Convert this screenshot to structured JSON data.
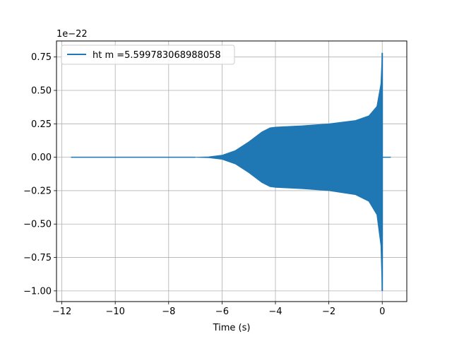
{
  "chart_data": {
    "type": "line",
    "title": "",
    "xlabel": "Time (s)",
    "ylabel": "",
    "y_scale_label": "1e−22",
    "xlim": [
      -12.2,
      0.92
    ],
    "ylim": [
      -1.08,
      0.87
    ],
    "x_ticks": [
      -12,
      -10,
      -8,
      -6,
      -4,
      -2,
      0
    ],
    "x_tick_labels": [
      "−12",
      "−10",
      "−8",
      "−6",
      "−4",
      "−2",
      "0"
    ],
    "y_ticks": [
      -1.0,
      -0.75,
      -0.5,
      -0.25,
      0.0,
      0.25,
      0.5,
      0.75
    ],
    "y_tick_labels": [
      "−1.00",
      "−0.75",
      "−0.50",
      "−0.25",
      "0.00",
      "0.25",
      "0.50",
      "0.75"
    ],
    "grid": true,
    "legend_position": "top-left",
    "series": [
      {
        "name": "ht m =5.599783068988058",
        "color": "#1f77b4",
        "x_start": -11.65,
        "x_end": 0.32,
        "envelope_upper": {
          "x": [
            -11.65,
            -7.0,
            -6.5,
            -6.0,
            -5.5,
            -5.0,
            -4.5,
            -4.2,
            -4.0,
            -3.0,
            -2.0,
            -1.0,
            -0.5,
            -0.2,
            -0.05,
            0.0
          ],
          "y": [
            0.0,
            0.0,
            0.003,
            0.015,
            0.05,
            0.115,
            0.19,
            0.22,
            0.225,
            0.235,
            0.25,
            0.275,
            0.31,
            0.38,
            0.55,
            0.78
          ]
        },
        "envelope_lower": {
          "x": [
            -11.65,
            -7.0,
            -6.5,
            -6.0,
            -5.5,
            -5.0,
            -4.5,
            -4.2,
            -4.0,
            -3.0,
            -2.0,
            -1.0,
            -0.5,
            -0.2,
            -0.05,
            0.0
          ],
          "y": [
            0.0,
            0.0,
            -0.003,
            -0.015,
            -0.05,
            -0.115,
            -0.19,
            -0.22,
            -0.225,
            -0.235,
            -0.25,
            -0.28,
            -0.33,
            -0.43,
            -0.66,
            -1.0
          ]
        },
        "ringdown_level": 0.0
      }
    ]
  }
}
